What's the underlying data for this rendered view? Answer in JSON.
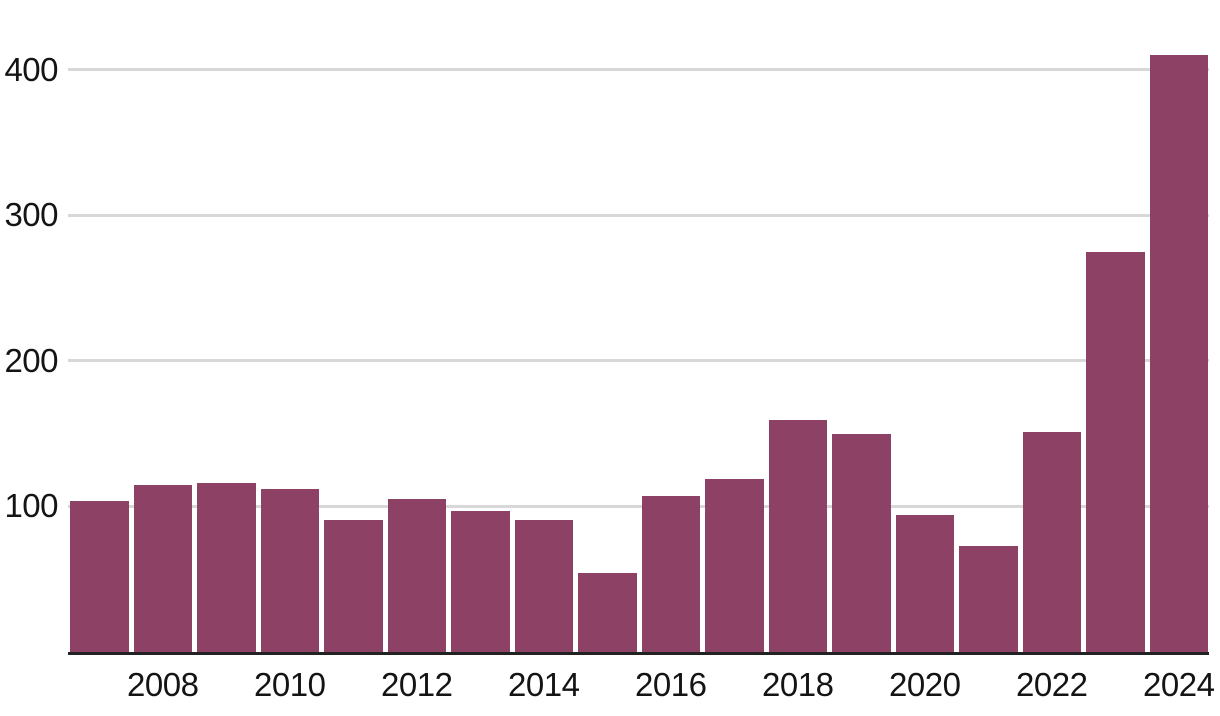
{
  "chart_data": {
    "type": "bar",
    "x": [
      2007,
      2008,
      2009,
      2010,
      2011,
      2012,
      2013,
      2014,
      2015,
      2016,
      2017,
      2018,
      2019,
      2020,
      2021,
      2022,
      2023,
      2024
    ],
    "values": [
      104,
      115,
      116,
      112,
      91,
      105,
      97,
      91,
      54,
      107,
      119,
      159,
      150,
      94,
      73,
      151,
      275,
      410
    ],
    "title": "",
    "xlabel": "",
    "ylabel": "",
    "x_tick_labels": [
      "2008",
      "2010",
      "2012",
      "2014",
      "2016",
      "2018",
      "2020",
      "2022",
      "2024"
    ],
    "y_ticks": [
      100,
      200,
      300,
      400
    ],
    "y_tick_labels": [
      "100",
      "200",
      "300",
      "400"
    ],
    "ylim": [
      0,
      450
    ],
    "grid": "horizontal-only",
    "legend": "none",
    "bar_color": "#8d4164",
    "gridline_color": "#d8d8d8",
    "axis_line_color": "#222222",
    "tick_label_color": "#141414"
  }
}
